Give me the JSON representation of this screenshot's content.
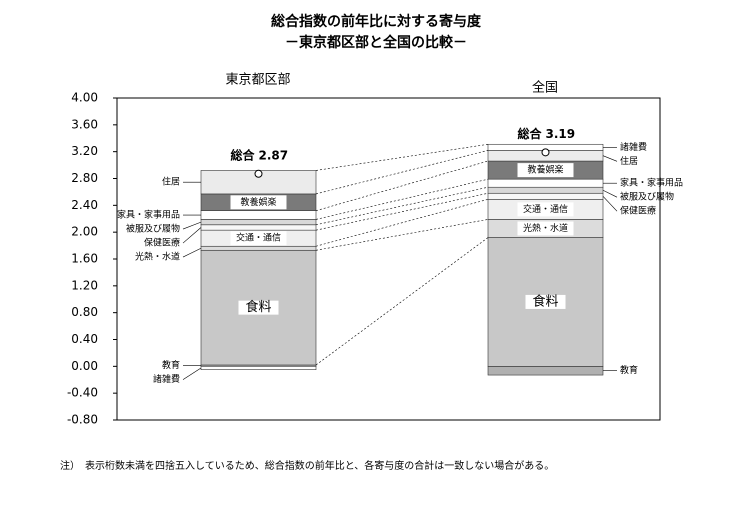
{
  "chart_data": {
    "type": "stacked_bar",
    "title": "総合指数の前年比に対する寄与度",
    "subtitle": "－東京都区部と全国の比較－",
    "categories": [
      "東京都区部",
      "全国"
    ],
    "series": [
      {
        "name": "教育",
        "color": "#b0b0b0",
        "values": [
          0.02,
          -0.13
        ]
      },
      {
        "name": "食料",
        "color": "#c8c8c8",
        "values": [
          1.71,
          1.92
        ]
      },
      {
        "name": "光熱・水道",
        "color": "#dcdcdc",
        "values": [
          0.06,
          0.27
        ]
      },
      {
        "name": "交通・通信",
        "color": "#efefef",
        "values": [
          0.24,
          0.3
        ]
      },
      {
        "name": "保健医療",
        "color": "#f7f7f7",
        "values": [
          0.08,
          0.09
        ]
      },
      {
        "name": "被服及び履物",
        "color": "#d8d8d8",
        "values": [
          0.08,
          0.09
        ]
      },
      {
        "name": "家具・家事用品",
        "color": "#ffffff",
        "values": [
          0.13,
          0.12
        ]
      },
      {
        "name": "教養娯楽",
        "color": "#7a7a7a",
        "values": [
          0.25,
          0.27
        ]
      },
      {
        "name": "住居",
        "color": "#ebebeb",
        "values": [
          0.35,
          0.16
        ]
      },
      {
        "name": "諸雑費",
        "color": "#ffffff",
        "values": [
          -0.05,
          0.09
        ]
      }
    ],
    "total_label": "総合",
    "totals": [
      2.87,
      3.19
    ],
    "ylim": [
      -0.8,
      4.0
    ],
    "yticks": [
      {
        "value": -0.8,
        "label": "-0.80"
      },
      {
        "value": -0.4,
        "label": "-0.40"
      },
      {
        "value": 0,
        "label": "0.00"
      },
      {
        "value": 0.4,
        "label": "0.40"
      },
      {
        "value": 0.8,
        "label": "0.80"
      },
      {
        "value": 1.2,
        "label": "1.20"
      },
      {
        "value": 1.6,
        "label": "1.60"
      },
      {
        "value": 2.0,
        "label": "2.00"
      },
      {
        "value": 2.4,
        "label": "2.40"
      },
      {
        "value": 2.8,
        "label": "2.80"
      },
      {
        "value": 3.2,
        "label": "3.20"
      },
      {
        "value": 3.6,
        "label": "3.60"
      },
      {
        "value": 4.0,
        "label": "4.00"
      }
    ],
    "note": "注）　表示桁数未満を四捨五入しているため、総合指数の前年比と、各寄与度の合計は一致しない場合がある。"
  }
}
